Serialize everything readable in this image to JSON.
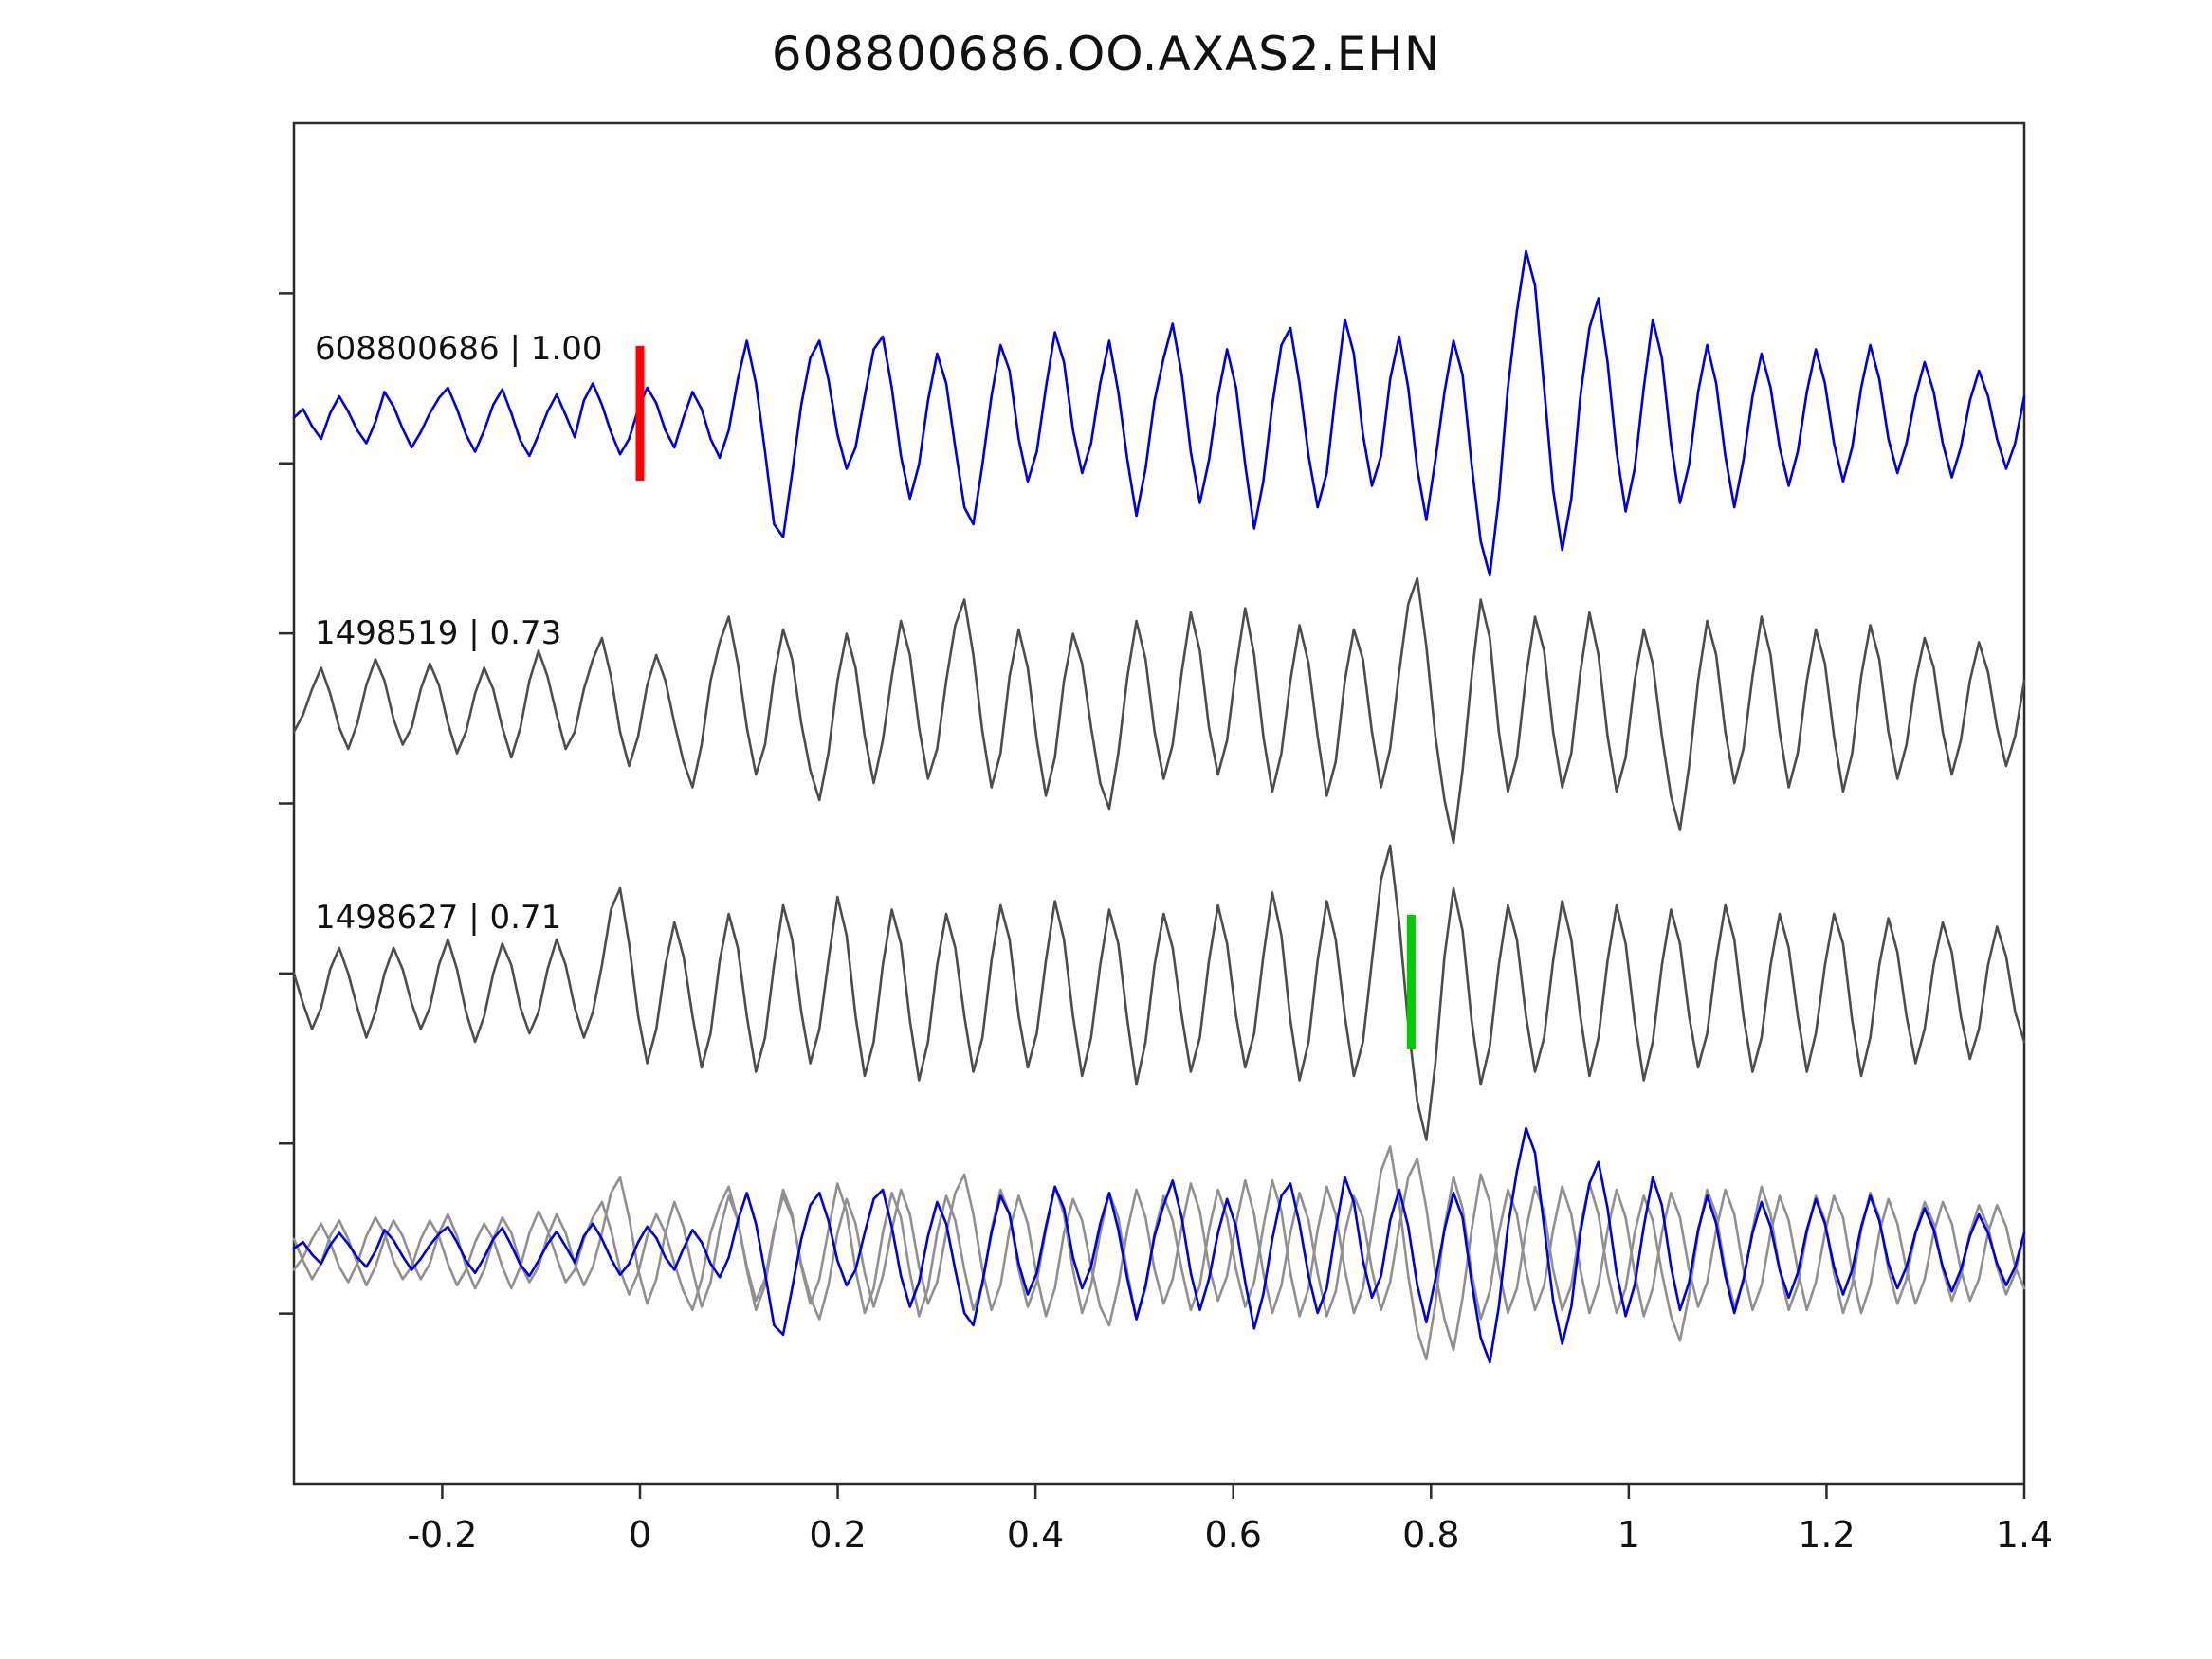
{
  "title": "608800686.OO.AXAS2.EHN",
  "colors": {
    "blue": "#0000dd",
    "gray_dark": "#4d4d4d",
    "gray_light": "#909090",
    "red": "#ff0000",
    "green": "#00cc00",
    "frame": "#2b2b2b",
    "text": "#111111"
  },
  "chart_data": {
    "type": "line",
    "title": "608800686.OO.AXAS2.EHN",
    "xlabel": "",
    "ylabel": "",
    "x_range": [
      -0.35,
      1.4
    ],
    "x_ticks": [
      -0.2,
      0,
      0.2,
      0.4,
      0.6,
      0.8,
      1,
      1.2,
      1.4
    ],
    "x_tick_labels": [
      "-0.2",
      "0",
      "0.2",
      "0.4",
      "0.6",
      "0.8",
      "1",
      "1.2",
      "1.4"
    ],
    "grid": false,
    "legend": "none",
    "markers": [
      {
        "x": 0.0,
        "row": 0,
        "color_key": "red",
        "name": "pick-marker-red"
      },
      {
        "x": 0.78,
        "row": 2,
        "color_key": "green",
        "name": "pick-marker-green"
      }
    ],
    "series": [
      {
        "id": "608800686",
        "correlation": "1.00",
        "label": "608800686 | 1.00",
        "color_key": "blue",
        "row": 0,
        "values": [
          0.05,
          0.15,
          -0.05,
          -0.2,
          0.1,
          0.3,
          0.12,
          -0.1,
          -0.25,
          0.0,
          0.35,
          0.18,
          -0.08,
          -0.3,
          -0.12,
          0.1,
          0.28,
          0.4,
          0.15,
          -0.15,
          -0.35,
          -0.1,
          0.2,
          0.38,
          0.1,
          -0.22,
          -0.4,
          -0.15,
          0.12,
          0.32,
          0.08,
          -0.18,
          0.25,
          0.45,
          0.2,
          -0.12,
          -0.38,
          -0.2,
          0.15,
          0.4,
          0.22,
          -0.1,
          -0.3,
          0.05,
          0.35,
          0.15,
          -0.2,
          -0.42,
          -0.1,
          0.5,
          0.95,
          0.45,
          -0.35,
          -1.2,
          -1.35,
          -0.6,
          0.2,
          0.75,
          0.95,
          0.5,
          -0.15,
          -0.55,
          -0.3,
          0.3,
          0.85,
          1.0,
          0.4,
          -0.4,
          -0.9,
          -0.5,
          0.25,
          0.8,
          0.45,
          -0.3,
          -1.0,
          -1.2,
          -0.5,
          0.3,
          0.9,
          0.6,
          -0.2,
          -0.7,
          -0.35,
          0.4,
          1.05,
          0.7,
          -0.1,
          -0.6,
          -0.25,
          0.45,
          0.95,
          0.35,
          -0.45,
          -1.1,
          -0.55,
          0.25,
          0.75,
          1.15,
          0.55,
          -0.35,
          -0.95,
          -0.45,
          0.3,
          0.85,
          0.4,
          -0.5,
          -1.25,
          -0.7,
          0.2,
          0.9,
          1.1,
          0.45,
          -0.4,
          -1.0,
          -0.6,
          0.35,
          1.2,
          0.8,
          -0.15,
          -0.75,
          -0.4,
          0.5,
          1.0,
          0.4,
          -0.55,
          -1.15,
          -0.45,
          0.35,
          0.95,
          0.55,
          -0.5,
          -1.4,
          -1.8,
          -0.9,
          0.4,
          1.3,
          2.0,
          1.6,
          0.4,
          -0.8,
          -1.5,
          -0.9,
          0.3,
          1.1,
          1.45,
          0.7,
          -0.35,
          -1.05,
          -0.55,
          0.4,
          1.2,
          0.75,
          -0.25,
          -0.95,
          -0.5,
          0.35,
          0.9,
          0.45,
          -0.4,
          -1.0,
          -0.45,
          0.3,
          0.8,
          0.4,
          -0.3,
          -0.75,
          -0.35,
          0.35,
          0.85,
          0.45,
          -0.25,
          -0.7,
          -0.3,
          0.4,
          0.9,
          0.5,
          -0.2,
          -0.6,
          -0.25,
          0.3,
          0.7,
          0.35,
          -0.25,
          -0.65,
          -0.3,
          0.25,
          0.6,
          0.3,
          -0.2,
          -0.55,
          -0.25,
          0.3
        ]
      },
      {
        "id": "1498519",
        "correlation": "0.73",
        "label": "1498519 | 0.73",
        "color_key": "gray_dark",
        "row": 1,
        "values": [
          -0.3,
          -0.1,
          0.2,
          0.45,
          0.15,
          -0.25,
          -0.5,
          -0.2,
          0.25,
          0.55,
          0.3,
          -0.15,
          -0.45,
          -0.25,
          0.2,
          0.5,
          0.25,
          -0.2,
          -0.55,
          -0.3,
          0.15,
          0.45,
          0.2,
          -0.25,
          -0.6,
          -0.25,
          0.3,
          0.65,
          0.35,
          -0.1,
          -0.5,
          -0.3,
          0.2,
          0.55,
          0.8,
          0.35,
          -0.3,
          -0.7,
          -0.35,
          0.25,
          0.6,
          0.3,
          -0.2,
          -0.65,
          -0.95,
          -0.45,
          0.3,
          0.75,
          1.05,
          0.5,
          -0.25,
          -0.8,
          -0.45,
          0.35,
          0.9,
          0.55,
          -0.2,
          -0.75,
          -1.1,
          -0.55,
          0.3,
          0.85,
          0.45,
          -0.35,
          -0.9,
          -0.4,
          0.35,
          1.0,
          0.6,
          -0.25,
          -0.85,
          -0.5,
          0.3,
          0.95,
          1.25,
          0.6,
          -0.3,
          -0.95,
          -0.55,
          0.35,
          0.9,
          0.45,
          -0.4,
          -1.05,
          -0.6,
          0.3,
          0.85,
          0.5,
          -0.25,
          -0.9,
          -1.2,
          -0.55,
          0.35,
          1.0,
          0.55,
          -0.3,
          -0.85,
          -0.45,
          0.4,
          1.1,
          0.65,
          -0.25,
          -0.8,
          -0.4,
          0.45,
          1.15,
          0.6,
          -0.35,
          -1.0,
          -0.55,
          0.3,
          0.95,
          0.5,
          -0.35,
          -1.05,
          -0.65,
          0.3,
          0.9,
          0.55,
          -0.3,
          -0.95,
          -0.5,
          0.4,
          1.2,
          1.5,
          0.7,
          -0.35,
          -1.1,
          -1.6,
          -0.75,
          0.35,
          1.25,
          0.8,
          -0.3,
          -1.0,
          -0.6,
          0.35,
          1.05,
          0.65,
          -0.3,
          -0.95,
          -0.55,
          0.4,
          1.1,
          0.6,
          -0.35,
          -1.0,
          -0.6,
          0.3,
          0.9,
          0.5,
          -0.35,
          -1.05,
          -1.45,
          -0.7,
          0.3,
          1.0,
          0.6,
          -0.3,
          -0.9,
          -0.5,
          0.35,
          1.05,
          0.6,
          -0.3,
          -0.95,
          -0.55,
          0.3,
          0.9,
          0.5,
          -0.35,
          -1.0,
          -0.55,
          0.35,
          0.95,
          0.55,
          -0.3,
          -0.85,
          -0.45,
          0.3,
          0.8,
          0.45,
          -0.3,
          -0.8,
          -0.4,
          0.3,
          0.75,
          0.4,
          -0.25,
          -0.7,
          -0.35,
          0.3
        ]
      },
      {
        "id": "1498627",
        "correlation": "0.71",
        "label": "1498627 | 0.71",
        "color_key": "gray_dark",
        "row": 2,
        "values": [
          0.2,
          -0.15,
          -0.45,
          -0.2,
          0.25,
          0.5,
          0.2,
          -0.2,
          -0.55,
          -0.25,
          0.2,
          0.5,
          0.25,
          -0.15,
          -0.45,
          -0.2,
          0.3,
          0.6,
          0.25,
          -0.25,
          -0.6,
          -0.3,
          0.2,
          0.55,
          0.3,
          -0.2,
          -0.5,
          -0.25,
          0.25,
          0.6,
          0.3,
          -0.2,
          -0.55,
          -0.25,
          0.3,
          0.95,
          1.2,
          0.55,
          -0.3,
          -0.85,
          -0.45,
          0.3,
          0.8,
          0.4,
          -0.3,
          -0.9,
          -0.5,
          0.35,
          0.9,
          0.5,
          -0.3,
          -0.95,
          -0.55,
          0.3,
          1.0,
          0.6,
          -0.25,
          -0.85,
          -0.45,
          0.35,
          1.1,
          0.65,
          -0.3,
          -1.0,
          -0.6,
          0.3,
          0.95,
          0.55,
          -0.35,
          -1.05,
          -0.6,
          0.3,
          0.9,
          0.5,
          -0.3,
          -0.95,
          -0.55,
          0.35,
          1.0,
          0.6,
          -0.3,
          -0.9,
          -0.5,
          0.35,
          1.05,
          0.6,
          -0.3,
          -1.0,
          -0.55,
          0.3,
          0.95,
          0.55,
          -0.35,
          -1.1,
          -0.6,
          0.3,
          0.9,
          0.5,
          -0.3,
          -0.95,
          -0.55,
          0.35,
          1.0,
          0.55,
          -0.3,
          -0.9,
          -0.5,
          0.4,
          1.15,
          0.65,
          -0.35,
          -1.05,
          -0.6,
          0.35,
          1.05,
          0.6,
          -0.3,
          -1.0,
          -0.6,
          0.35,
          1.3,
          1.7,
          0.8,
          -0.4,
          -1.3,
          -1.75,
          -0.85,
          0.4,
          1.2,
          0.7,
          -0.35,
          -1.1,
          -0.65,
          0.3,
          1.0,
          0.6,
          -0.3,
          -0.95,
          -0.55,
          0.35,
          1.05,
          0.6,
          -0.3,
          -1.0,
          -0.55,
          0.35,
          1.0,
          0.55,
          -0.35,
          -1.05,
          -0.6,
          0.3,
          0.95,
          0.55,
          -0.3,
          -0.9,
          -0.5,
          0.35,
          1.0,
          0.6,
          -0.3,
          -0.95,
          -0.55,
          0.3,
          0.9,
          0.5,
          -0.3,
          -0.95,
          -0.5,
          0.3,
          0.9,
          0.55,
          -0.35,
          -1.0,
          -0.55,
          0.3,
          0.85,
          0.45,
          -0.3,
          -0.85,
          -0.45,
          0.3,
          0.8,
          0.45,
          -0.3,
          -0.8,
          -0.45,
          0.3,
          0.75,
          0.4,
          -0.25,
          -0.6
        ]
      }
    ],
    "overlay": {
      "description": "bottom panel: both gray templates overlaid with blue detection trace",
      "members": [
        {
          "series_index": 1,
          "color_key": "gray_light"
        },
        {
          "series_index": 2,
          "color_key": "gray_light"
        },
        {
          "series_index": 0,
          "color_key": "blue"
        }
      ]
    }
  }
}
